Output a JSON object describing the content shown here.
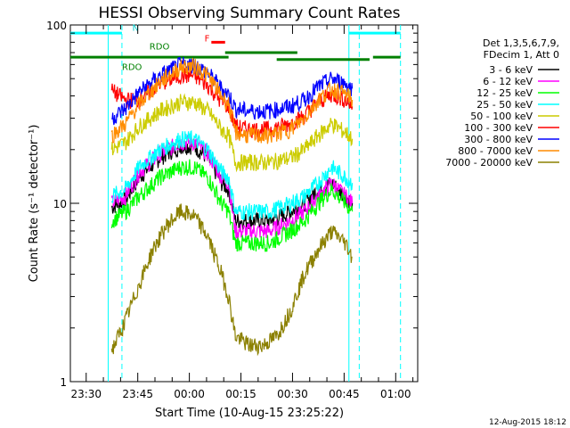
{
  "chart_data": {
    "type": "line",
    "title": "HESSI Observing Summary Count Rates",
    "xlabel": "Start Time (10-Aug-15 23:25:22)",
    "ylabel": "Count Rate (s⁻¹ detector⁻¹)",
    "yscale": "log",
    "ylim": [
      1,
      100
    ],
    "xlim_minutes": [
      0,
      101
    ],
    "y_ticks": [
      {
        "value": 1,
        "label": "1"
      },
      {
        "value": 10,
        "label": "10"
      },
      {
        "value": 100,
        "label": "100"
      }
    ],
    "x_ticks": [
      {
        "value": 4.6,
        "label": "23:30"
      },
      {
        "value": 19.6,
        "label": "23:45"
      },
      {
        "value": 34.6,
        "label": "00:00"
      },
      {
        "value": 49.6,
        "label": "00:15"
      },
      {
        "value": 64.6,
        "label": "00:30"
      },
      {
        "value": 79.6,
        "label": "00:45"
      },
      {
        "value": 94.6,
        "label": "01:00"
      }
    ],
    "legend_header": [
      "Det 1,3,5,6,7,9,",
      "FDecim 1, Att 0"
    ],
    "legend_placement": "right",
    "series": [
      {
        "name": "3 - 6 keV",
        "color": "#000000",
        "points": [
          [
            12,
            9.5
          ],
          [
            16,
            10.5
          ],
          [
            20,
            14
          ],
          [
            26,
            18
          ],
          [
            32,
            21
          ],
          [
            36,
            21
          ],
          [
            40,
            18
          ],
          [
            44,
            13
          ],
          [
            46,
            12
          ],
          [
            48,
            8
          ],
          [
            52,
            8
          ],
          [
            58,
            8
          ],
          [
            64,
            9
          ],
          [
            68,
            10
          ],
          [
            72,
            12
          ],
          [
            76,
            13
          ],
          [
            80,
            11
          ],
          [
            82,
            10
          ]
        ]
      },
      {
        "name": "6 - 12 keV",
        "color": "#ff00ff",
        "points": [
          [
            12,
            10
          ],
          [
            16,
            11
          ],
          [
            20,
            15
          ],
          [
            26,
            19
          ],
          [
            32,
            22
          ],
          [
            36,
            22
          ],
          [
            40,
            19
          ],
          [
            44,
            14
          ],
          [
            46,
            13
          ],
          [
            48,
            7
          ],
          [
            52,
            7
          ],
          [
            58,
            7
          ],
          [
            64,
            8
          ],
          [
            68,
            9
          ],
          [
            72,
            11
          ],
          [
            76,
            13
          ],
          [
            80,
            11
          ],
          [
            82,
            10
          ]
        ]
      },
      {
        "name": "12 - 25 keV",
        "color": "#00ff00",
        "points": [
          [
            12,
            8
          ],
          [
            16,
            9
          ],
          [
            20,
            11
          ],
          [
            26,
            14
          ],
          [
            32,
            16
          ],
          [
            36,
            16
          ],
          [
            40,
            14
          ],
          [
            44,
            10
          ],
          [
            46,
            9
          ],
          [
            48,
            6
          ],
          [
            52,
            6
          ],
          [
            58,
            6
          ],
          [
            64,
            7
          ],
          [
            68,
            8
          ],
          [
            72,
            10
          ],
          [
            76,
            12
          ],
          [
            80,
            10
          ],
          [
            82,
            9
          ]
        ]
      },
      {
        "name": "25 - 50 keV",
        "color": "#00ffff",
        "points": [
          [
            12,
            11
          ],
          [
            16,
            12
          ],
          [
            20,
            16
          ],
          [
            26,
            20
          ],
          [
            32,
            23
          ],
          [
            36,
            23
          ],
          [
            40,
            20
          ],
          [
            44,
            15
          ],
          [
            46,
            14
          ],
          [
            48,
            9
          ],
          [
            52,
            9
          ],
          [
            58,
            9
          ],
          [
            64,
            10
          ],
          [
            68,
            11
          ],
          [
            72,
            13
          ],
          [
            76,
            16
          ],
          [
            80,
            14
          ],
          [
            82,
            13
          ]
        ]
      },
      {
        "name": "50 - 100 keV",
        "color": "#cccc00",
        "points": [
          [
            12,
            20
          ],
          [
            16,
            22
          ],
          [
            20,
            27
          ],
          [
            26,
            33
          ],
          [
            32,
            37
          ],
          [
            36,
            37
          ],
          [
            40,
            33
          ],
          [
            44,
            26
          ],
          [
            46,
            24
          ],
          [
            48,
            17
          ],
          [
            52,
            17
          ],
          [
            58,
            17
          ],
          [
            64,
            18
          ],
          [
            68,
            20
          ],
          [
            72,
            24
          ],
          [
            76,
            28
          ],
          [
            80,
            25
          ],
          [
            82,
            23
          ]
        ]
      },
      {
        "name": "100 - 300 keV",
        "color": "#ff0000",
        "points": [
          [
            12,
            43
          ],
          [
            16,
            38
          ],
          [
            20,
            38
          ],
          [
            26,
            47
          ],
          [
            32,
            52
          ],
          [
            36,
            52
          ],
          [
            40,
            46
          ],
          [
            44,
            37
          ],
          [
            46,
            35
          ],
          [
            48,
            27
          ],
          [
            52,
            26
          ],
          [
            58,
            26
          ],
          [
            64,
            28
          ],
          [
            68,
            31
          ],
          [
            72,
            37
          ],
          [
            76,
            41
          ],
          [
            80,
            38
          ],
          [
            82,
            35
          ]
        ]
      },
      {
        "name": "300 - 800 keV",
        "color": "#0000ff",
        "points": [
          [
            12,
            30
          ],
          [
            16,
            34
          ],
          [
            20,
            42
          ],
          [
            26,
            52
          ],
          [
            32,
            60
          ],
          [
            36,
            60
          ],
          [
            40,
            54
          ],
          [
            44,
            44
          ],
          [
            46,
            41
          ],
          [
            48,
            34
          ],
          [
            52,
            33
          ],
          [
            58,
            33
          ],
          [
            64,
            35
          ],
          [
            68,
            38
          ],
          [
            72,
            45
          ],
          [
            76,
            50
          ],
          [
            80,
            47
          ],
          [
            82,
            44
          ]
        ]
      },
      {
        "name": "800 - 7000 keV",
        "color": "#ff8c00",
        "points": [
          [
            12,
            24
          ],
          [
            16,
            28
          ],
          [
            20,
            36
          ],
          [
            26,
            48
          ],
          [
            32,
            58
          ],
          [
            36,
            59
          ],
          [
            40,
            52
          ],
          [
            44,
            40
          ],
          [
            46,
            36
          ],
          [
            48,
            25
          ],
          [
            52,
            24
          ],
          [
            58,
            24
          ],
          [
            64,
            26
          ],
          [
            68,
            30
          ],
          [
            72,
            38
          ],
          [
            76,
            44
          ],
          [
            80,
            41
          ],
          [
            82,
            38
          ]
        ]
      },
      {
        "name": "7000 - 20000 keV",
        "color": "#8b8000",
        "points": [
          [
            12,
            1.5
          ],
          [
            14,
            1.8
          ],
          [
            16,
            2.2
          ],
          [
            20,
            3.5
          ],
          [
            24,
            5.5
          ],
          [
            28,
            7.5
          ],
          [
            32,
            9
          ],
          [
            36,
            8.5
          ],
          [
            40,
            6.5
          ],
          [
            44,
            4
          ],
          [
            46,
            3
          ],
          [
            48,
            1.8
          ],
          [
            52,
            1.6
          ],
          [
            56,
            1.6
          ],
          [
            60,
            1.8
          ],
          [
            64,
            2.5
          ],
          [
            68,
            4
          ],
          [
            72,
            5.5
          ],
          [
            76,
            7
          ],
          [
            80,
            6
          ],
          [
            82,
            5
          ]
        ]
      }
    ],
    "annotations": [
      {
        "text": "N",
        "color": "#00cccc",
        "x": 18,
        "y": 93
      },
      {
        "text": "RDO",
        "color": "#008000",
        "x": 15,
        "y": 56
      },
      {
        "text": "RDO",
        "color": "#008000",
        "x": 23,
        "y": 73
      },
      {
        "text": "F",
        "color": "#ff0000",
        "x": 39,
        "y": 81
      }
    ],
    "segments": [
      {
        "name": "night",
        "color": "#00ffff",
        "y": 90,
        "x0": 0,
        "x1": 15
      },
      {
        "name": "night",
        "color": "#00ffff",
        "y": 90,
        "x0": 81,
        "x1": 96
      },
      {
        "name": "rdo",
        "color": "#008000",
        "y": 66,
        "x0": 0,
        "x1": 46
      },
      {
        "name": "rdo",
        "color": "#008000",
        "y": 70,
        "x0": 45,
        "x1": 66
      },
      {
        "name": "rdo",
        "color": "#008000",
        "y": 64,
        "x0": 60,
        "x1": 87
      },
      {
        "name": "rdo",
        "color": "#008000",
        "y": 66,
        "x0": 88,
        "x1": 96
      },
      {
        "name": "flare",
        "color": "#ff0000",
        "y": 80,
        "x0": 41,
        "x1": 45
      }
    ],
    "vertical_markers": [
      {
        "x": 11,
        "color": "#00ffff",
        "style": "solid"
      },
      {
        "x": 15,
        "color": "#00ffff",
        "style": "dash"
      },
      {
        "x": 81,
        "color": "#00ffff",
        "style": "solid"
      },
      {
        "x": 84,
        "color": "#00ffff",
        "style": "dash"
      },
      {
        "x": 96,
        "color": "#00ffff",
        "style": "dash"
      }
    ]
  },
  "footer": {
    "timestamp": "12-Aug-2015 18:12"
  }
}
